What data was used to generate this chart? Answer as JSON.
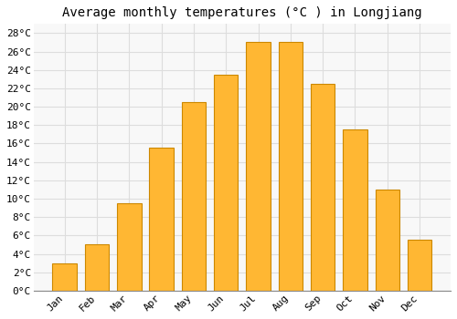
{
  "title": "Average monthly temperatures (°C ) in Longjiang",
  "months": [
    "Jan",
    "Feb",
    "Mar",
    "Apr",
    "May",
    "Jun",
    "Jul",
    "Aug",
    "Sep",
    "Oct",
    "Nov",
    "Dec"
  ],
  "values": [
    3,
    5,
    9.5,
    15.5,
    20.5,
    23.5,
    27,
    27,
    22.5,
    17.5,
    11,
    5.5
  ],
  "bar_color": "#FFB733",
  "bar_edge_color": "#CC8800",
  "background_color": "#FFFFFF",
  "plot_bg_color": "#F8F8F8",
  "grid_color": "#DDDDDD",
  "ylim": [
    0,
    29
  ],
  "yticks": [
    0,
    2,
    4,
    6,
    8,
    10,
    12,
    14,
    16,
    18,
    20,
    22,
    24,
    26,
    28
  ],
  "title_fontsize": 10,
  "tick_fontsize": 8,
  "figsize": [
    5.0,
    3.5
  ],
  "dpi": 100
}
